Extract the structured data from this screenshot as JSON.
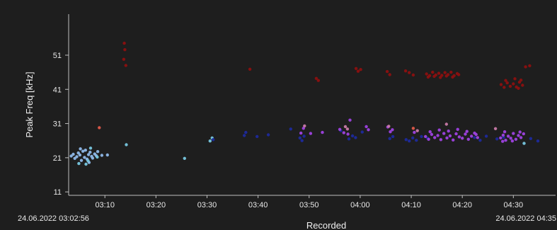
{
  "chart_data": {
    "type": "scatter",
    "ylabel": "Peak Freq [kHz]",
    "xlabel": "Recorded",
    "y_ticks": [
      11,
      21,
      31,
      41,
      51
    ],
    "ylim": [
      10,
      63
    ],
    "x_ticks": [
      "03:10",
      "03:20",
      "03:30",
      "03:40",
      "03:50",
      "04:00",
      "04:10",
      "04:20",
      "04:30"
    ],
    "x_tick_minutes": [
      190,
      200,
      210,
      220,
      230,
      240,
      250,
      260,
      270
    ],
    "xlim_minutes": [
      182.9,
      275.5
    ],
    "x_start_label": "24.06.2022 03:02:56",
    "x_end_label": "24.06.2022 04:35",
    "grid": false,
    "colors": {
      "background": "#1e1e1e",
      "panel": "#202020",
      "axis": "#bfbfbf",
      "text": "#e8e8e8"
    },
    "series": [
      {
        "color": "#8fb8e8",
        "points": [
          [
            183.4,
            21.5
          ],
          [
            183.8,
            22.0
          ],
          [
            184.1,
            20.8
          ],
          [
            184.5,
            21.3
          ],
          [
            184.8,
            22.4
          ],
          [
            185.1,
            21.8
          ],
          [
            185.4,
            20.2
          ],
          [
            185.7,
            22.9
          ],
          [
            186.0,
            21.1
          ],
          [
            186.2,
            23.2
          ],
          [
            186.5,
            20.6
          ],
          [
            186.8,
            21.9
          ],
          [
            187.1,
            22.6
          ],
          [
            187.4,
            21.4
          ],
          [
            187.6,
            20.9
          ],
          [
            188.0,
            22.1
          ],
          [
            188.3,
            21.6
          ],
          [
            188.6,
            22.8
          ],
          [
            189.4,
            21.7
          ],
          [
            190.5,
            21.8
          ],
          [
            186.9,
            19.6
          ],
          [
            185.2,
            23.6
          ]
        ]
      },
      {
        "color": "#78c8e0",
        "points": [
          [
            184.9,
            19.3
          ],
          [
            186.3,
            19.1
          ],
          [
            186.7,
            20.1
          ],
          [
            187.2,
            23.8
          ],
          [
            188.5,
            21.2
          ],
          [
            194.2,
            24.8
          ],
          [
            205.6,
            20.8
          ],
          [
            210.6,
            25.9
          ],
          [
            211.0,
            26.8
          ],
          [
            272.1,
            25.2
          ]
        ]
      },
      {
        "color": "#1e2a9c",
        "points": [
          [
            211.2,
            26.3
          ],
          [
            217.3,
            27.5
          ],
          [
            217.6,
            28.4
          ],
          [
            222.0,
            27.7
          ],
          [
            228.2,
            26.8
          ],
          [
            228.6,
            26.0
          ],
          [
            229.0,
            27.3
          ],
          [
            237.8,
            26.5
          ],
          [
            238.5,
            27.4
          ],
          [
            239.1,
            26.9
          ],
          [
            245.8,
            26.6
          ],
          [
            246.4,
            27.2
          ],
          [
            249.0,
            26.3
          ],
          [
            249.6,
            25.9
          ],
          [
            250.3,
            26.8
          ],
          [
            251.0,
            26.1
          ],
          [
            252.0,
            27.2
          ],
          [
            253.2,
            26.7
          ],
          [
            262.4,
            26.9
          ],
          [
            263.5,
            26.1
          ],
          [
            264.7,
            27.3
          ],
          [
            266.8,
            26.5
          ],
          [
            268.1,
            27.0
          ],
          [
            273.4,
            26.6
          ],
          [
            274.8,
            25.9
          ],
          [
            236.2,
            28.9
          ],
          [
            240.4,
            28.5
          ],
          [
            226.4,
            29.4
          ],
          [
            219.8,
            27.2
          ]
        ]
      },
      {
        "color": "#9e42e0",
        "points": [
          [
            228.4,
            28.2
          ],
          [
            228.9,
            29.6
          ],
          [
            230.3,
            28.1
          ],
          [
            232.6,
            28.4
          ],
          [
            236.0,
            29.3
          ],
          [
            236.8,
            28.3
          ],
          [
            237.6,
            27.9
          ],
          [
            238.0,
            32.0
          ],
          [
            241.2,
            30.1
          ],
          [
            241.6,
            29.2
          ],
          [
            245.4,
            30.0
          ],
          [
            245.9,
            28.6
          ],
          [
            246.3,
            29.2
          ],
          [
            250.6,
            28.4
          ],
          [
            252.8,
            27.2
          ],
          [
            253.4,
            26.4
          ],
          [
            254.0,
            27.8
          ],
          [
            254.6,
            26.9
          ],
          [
            255.2,
            27.5
          ],
          [
            255.8,
            26.3
          ],
          [
            256.4,
            28.1
          ],
          [
            257.0,
            26.8
          ],
          [
            257.6,
            27.4
          ],
          [
            258.2,
            26.2
          ],
          [
            258.8,
            28.0
          ],
          [
            259.4,
            27.1
          ],
          [
            260.0,
            26.7
          ],
          [
            260.6,
            27.9
          ],
          [
            261.2,
            26.4
          ],
          [
            261.8,
            27.3
          ],
          [
            262.4,
            28.2
          ],
          [
            263.0,
            26.9
          ],
          [
            253.7,
            28.6
          ],
          [
            255.5,
            29.1
          ],
          [
            257.3,
            28.8
          ],
          [
            259.1,
            29.3
          ],
          [
            260.9,
            28.7
          ],
          [
            262.7,
            27.8
          ],
          [
            267.5,
            26.8
          ],
          [
            268.0,
            27.6
          ],
          [
            268.5,
            26.1
          ],
          [
            269.0,
            27.3
          ],
          [
            269.5,
            26.7
          ],
          [
            270.0,
            28.1
          ],
          [
            270.5,
            26.4
          ],
          [
            271.0,
            27.5
          ],
          [
            271.5,
            26.9
          ],
          [
            272.0,
            28.0
          ],
          [
            268.3,
            28.6
          ],
          [
            269.8,
            25.9
          ],
          [
            271.3,
            28.5
          ],
          [
            267.9,
            25.8
          ]
        ]
      },
      {
        "color": "#c87aa8",
        "points": [
          [
            229.1,
            30.3
          ],
          [
            237.1,
            30.1
          ],
          [
            237.5,
            29.4
          ],
          [
            245.6,
            30.2
          ],
          [
            251.2,
            28.9
          ],
          [
            256.9,
            30.8
          ],
          [
            266.5,
            29.5
          ]
        ]
      },
      {
        "color": "#e05a4a",
        "points": [
          [
            188.9,
            29.8
          ],
          [
            250.4,
            29.6
          ]
        ]
      },
      {
        "color": "#8c1010",
        "points": [
          [
            193.8,
            54.5
          ],
          [
            193.9,
            52.6
          ],
          [
            193.7,
            49.8
          ],
          [
            194.1,
            48.0
          ],
          [
            218.4,
            46.9
          ],
          [
            231.4,
            44.2
          ],
          [
            231.8,
            43.6
          ],
          [
            239.2,
            47.1
          ],
          [
            239.6,
            46.3
          ],
          [
            240.1,
            46.8
          ],
          [
            245.3,
            46.2
          ],
          [
            245.8,
            45.3
          ],
          [
            248.9,
            46.4
          ],
          [
            249.6,
            45.9
          ],
          [
            250.4,
            45.2
          ],
          [
            253.0,
            45.5
          ],
          [
            253.6,
            45.0
          ],
          [
            254.2,
            46.0
          ],
          [
            254.8,
            45.2
          ],
          [
            255.4,
            45.7
          ],
          [
            256.0,
            45.1
          ],
          [
            256.6,
            45.9
          ],
          [
            257.2,
            45.3
          ],
          [
            257.8,
            46.0
          ],
          [
            258.4,
            45.0
          ],
          [
            259.0,
            45.6
          ],
          [
            253.3,
            44.6
          ],
          [
            254.5,
            44.8
          ],
          [
            255.7,
            44.5
          ],
          [
            256.9,
            44.9
          ],
          [
            258.1,
            44.6
          ],
          [
            259.3,
            45.3
          ],
          [
            267.6,
            42.4
          ],
          [
            268.2,
            41.6
          ],
          [
            268.8,
            42.9
          ],
          [
            269.4,
            41.9
          ],
          [
            270.0,
            42.6
          ],
          [
            270.6,
            41.7
          ],
          [
            271.2,
            43.1
          ],
          [
            271.8,
            42.2
          ],
          [
            268.5,
            43.6
          ],
          [
            270.3,
            44.1
          ],
          [
            271.5,
            43.7
          ],
          [
            272.4,
            47.6
          ],
          [
            273.2,
            47.9
          ],
          [
            271.0,
            41.3
          ]
        ]
      }
    ]
  }
}
